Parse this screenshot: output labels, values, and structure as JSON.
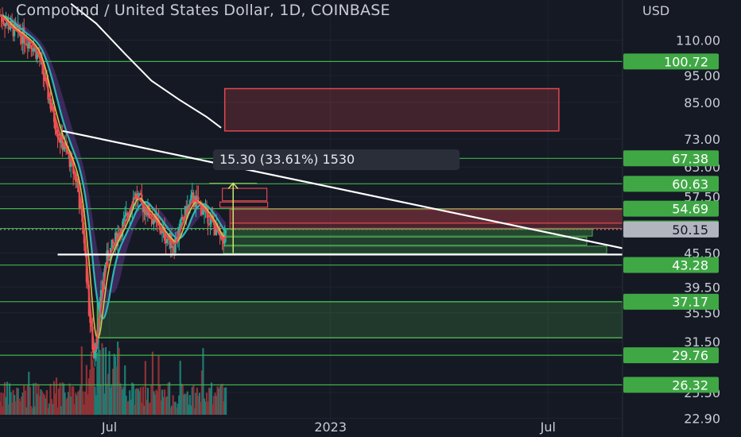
{
  "title": "Compound / United States Dollar, 1D, COINBASE",
  "measure_label": "15.30 (33.61%) 1530",
  "colors": {
    "background": "#151924",
    "grid": "#1f2330",
    "level_line": "#3fb24a",
    "level_badge": "#3fa845",
    "resistance_zone": "#e0474f",
    "support_zone": "#4cae4f",
    "trendline": "#ffffff",
    "long_ma": "#ffffff",
    "price_fast": "#f04a4f",
    "price_mid": "#d7c14a",
    "price_slow": "#2ab7b7",
    "cloud": "#6b3fa0",
    "candle_up": "#2bb5a5",
    "candle_down": "#ef5350",
    "volume_up": "#1f7a72",
    "volume_down": "#8e3236",
    "current_price_badge": "#b2b5be",
    "measure_arrow": "#c8e86a"
  },
  "chart_data": {
    "type": "candlestick",
    "title": "Compound / United States Dollar, 1D, COINBASE",
    "ylabel": "USD",
    "y_scale": "log",
    "ylim": [
      21.2,
      130
    ],
    "y_ticks": [
      110.0,
      95.0,
      85.0,
      73.0,
      65.0,
      57.5,
      45.5,
      39.5,
      35.5,
      31.5,
      25.5,
      22.9
    ],
    "x_ticks": [
      {
        "label": "Jul",
        "date": "2022-07-01"
      },
      {
        "label": "2023",
        "date": "2023-01-01"
      },
      {
        "label": "Jul",
        "date": "2023-07-01"
      }
    ],
    "xlim": [
      "2022-04-01",
      "2023-09-01"
    ],
    "current_price": 50.15,
    "levels": [
      100.72,
      67.38,
      60.63,
      54.69,
      50.37,
      43.28,
      37.17,
      29.76,
      26.32
    ],
    "zones": [
      {
        "kind": "resistance",
        "from_date": "2022-10-05",
        "to_date": "2023-07-10",
        "low": 75.5,
        "high": 90.0
      },
      {
        "kind": "support",
        "from_date": "2022-06-21",
        "to_date": "2023-09-01",
        "low": 32.0,
        "high": 37.17
      }
    ],
    "trendlines": [
      {
        "kind": "descending",
        "from": {
          "date": "2022-05-23",
          "price": 75.5
        },
        "to": {
          "date": "2023-09-01",
          "price": 46.4
        }
      },
      {
        "kind": "horizontal",
        "from": {
          "date": "2022-05-19",
          "price": 45.2
        },
        "to": {
          "date": "2023-09-01",
          "price": 45.2
        }
      }
    ],
    "price_path": [
      {
        "date": "2022-04-01",
        "price": 122
      },
      {
        "date": "2022-04-10",
        "price": 116
      },
      {
        "date": "2022-04-20",
        "price": 112
      },
      {
        "date": "2022-04-28",
        "price": 108
      },
      {
        "date": "2022-05-04",
        "price": 102
      },
      {
        "date": "2022-05-12",
        "price": 86
      },
      {
        "date": "2022-05-20",
        "price": 74
      },
      {
        "date": "2022-05-28",
        "price": 68
      },
      {
        "date": "2022-06-04",
        "price": 61
      },
      {
        "date": "2022-06-10",
        "price": 48
      },
      {
        "date": "2022-06-14",
        "price": 36
      },
      {
        "date": "2022-06-18",
        "price": 29.5
      },
      {
        "date": "2022-06-22",
        "price": 35
      },
      {
        "date": "2022-06-28",
        "price": 44
      },
      {
        "date": "2022-07-06",
        "price": 48
      },
      {
        "date": "2022-07-14",
        "price": 52
      },
      {
        "date": "2022-07-22",
        "price": 58
      },
      {
        "date": "2022-07-30",
        "price": 55
      },
      {
        "date": "2022-08-08",
        "price": 52
      },
      {
        "date": "2022-08-16",
        "price": 49
      },
      {
        "date": "2022-08-24",
        "price": 47
      },
      {
        "date": "2022-09-01",
        "price": 53
      },
      {
        "date": "2022-09-08",
        "price": 57
      },
      {
        "date": "2022-09-16",
        "price": 55
      },
      {
        "date": "2022-09-24",
        "price": 52
      },
      {
        "date": "2022-10-02",
        "price": 48
      },
      {
        "date": "2022-10-06",
        "price": 49
      }
    ],
    "moving_average_long": [
      {
        "date": "2022-05-30",
        "price": 128
      },
      {
        "date": "2022-06-20",
        "price": 118
      },
      {
        "date": "2022-07-14",
        "price": 104
      },
      {
        "date": "2022-08-05",
        "price": 93
      },
      {
        "date": "2022-08-28",
        "price": 86
      },
      {
        "date": "2022-09-20",
        "price": 80
      },
      {
        "date": "2022-10-02",
        "price": 76.5
      }
    ],
    "measure": {
      "from_price": 45.5,
      "to_price": 60.8,
      "date": "2022-10-12",
      "label": "15.30 (33.61%) 1530"
    }
  }
}
